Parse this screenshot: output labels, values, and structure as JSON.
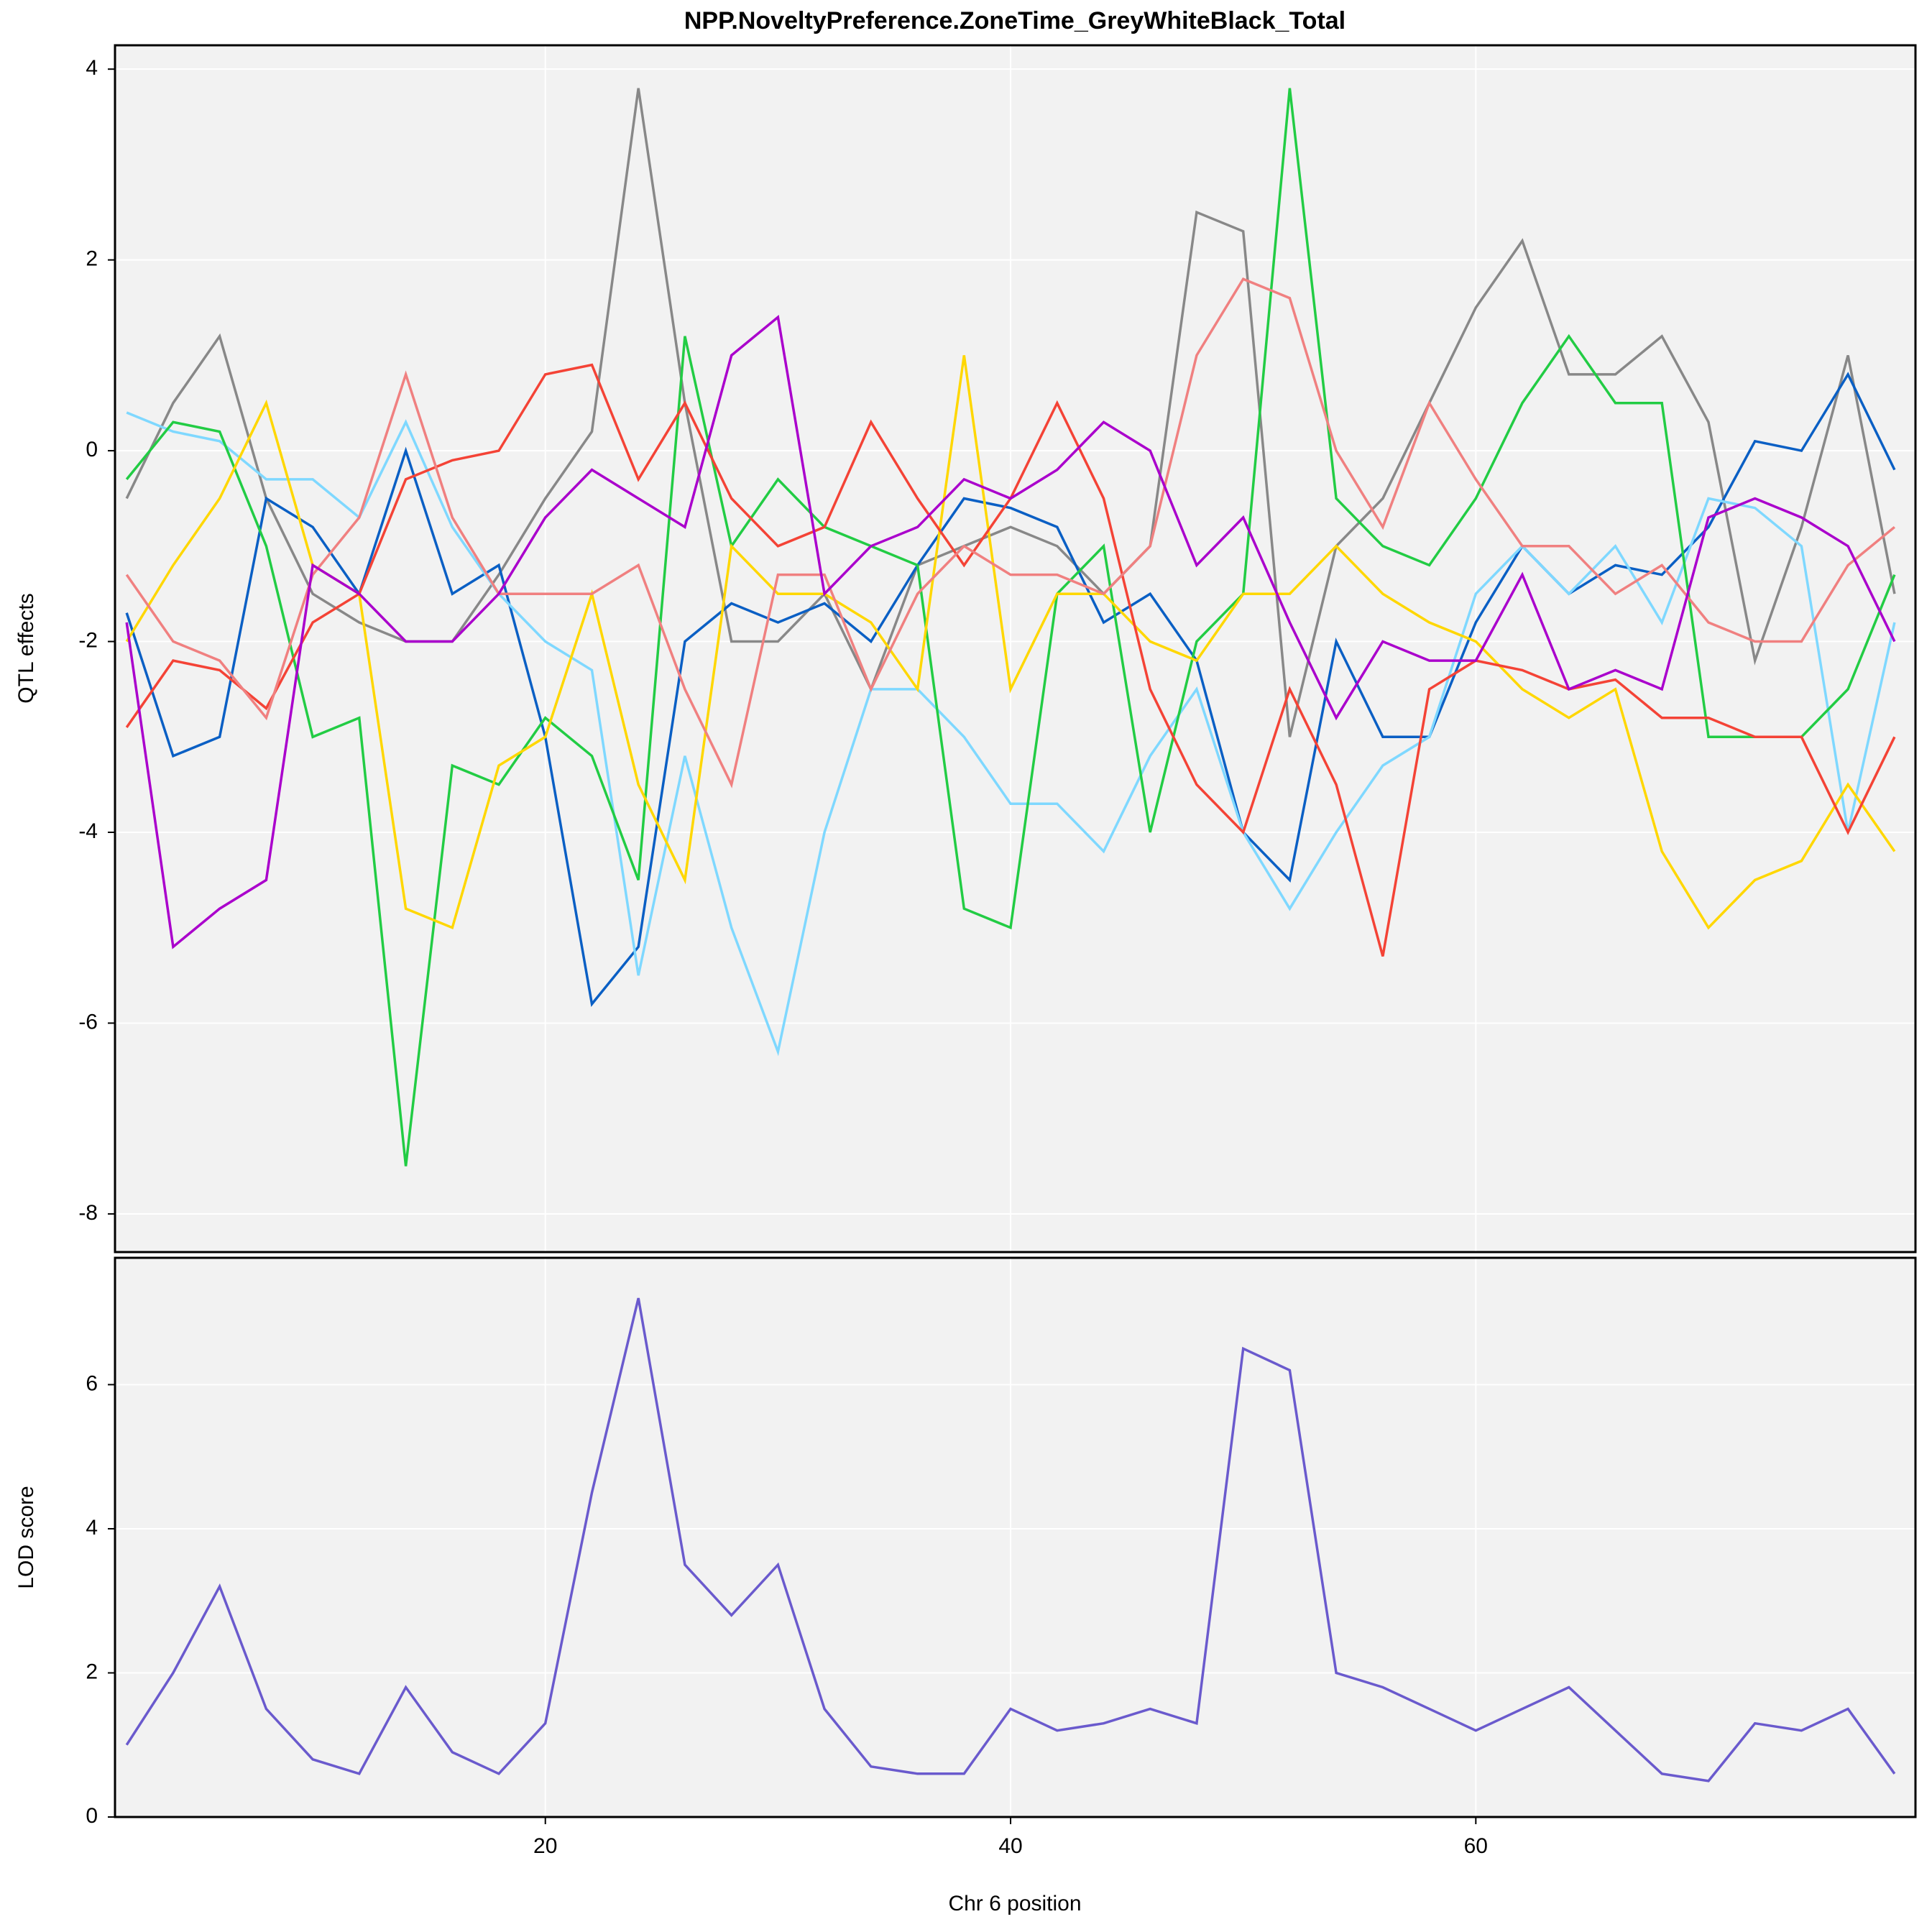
{
  "chart_data": [
    {
      "type": "line",
      "title": "NPP.NoveltyPreference.ZoneTime_GreyWhiteBlack_Total",
      "ylabel": "QTL effects",
      "x": [
        2,
        4,
        6,
        8,
        10,
        12,
        14,
        16,
        18,
        20,
        22,
        24,
        26,
        28,
        30,
        32,
        34,
        36,
        38,
        40,
        42,
        44,
        46,
        48,
        50,
        52,
        54,
        56,
        58,
        60,
        62,
        64,
        66,
        68,
        70,
        72,
        74,
        76,
        78
      ],
      "xlim": [
        1.5,
        78.9
      ],
      "ylim": [
        -8.4,
        4.25
      ],
      "yticks": [
        4,
        2,
        0,
        -2,
        -4,
        -6,
        -8
      ],
      "grid": true,
      "series": [
        {
          "color": "#888888",
          "values": [
            -0.5,
            0.5,
            1.2,
            -0.5,
            -1.5,
            -1.8,
            -2,
            -2,
            -1.3,
            -0.5,
            0.2,
            3.8,
            0.5,
            -2,
            -2,
            -1.5,
            -2.5,
            -1.2,
            -1,
            -0.8,
            -1,
            -1.5,
            -1,
            2.5,
            2.3,
            -3,
            -1,
            -0.5,
            0.5,
            1.5,
            2.2,
            0.8,
            0.8,
            1.2,
            0.3,
            -2.2,
            -0.8,
            1,
            -1.5
          ]
        },
        {
          "color": "#0a5fc4",
          "values": [
            -1.7,
            -3.2,
            -3,
            -0.5,
            -0.8,
            -1.5,
            0,
            -1.5,
            -1.2,
            -3,
            -5.8,
            -5.2,
            -2,
            -1.6,
            -1.8,
            -1.6,
            -2,
            -1.2,
            -0.5,
            -0.6,
            -0.8,
            -1.8,
            -1.5,
            -2.2,
            -4,
            -4.5,
            -2,
            -3,
            -3,
            -1.8,
            -1,
            -1.5,
            -1.2,
            -1.3,
            -0.8,
            0.1,
            0,
            0.8,
            -0.2
          ]
        },
        {
          "color": "#7fd8ff",
          "values": [
            0.4,
            0.2,
            0.1,
            -0.3,
            -0.3,
            -0.7,
            0.3,
            -0.8,
            -1.5,
            -2,
            -2.3,
            -5.5,
            -3.2,
            -5,
            -6.3,
            -4,
            -2.5,
            -2.5,
            -3,
            -3.7,
            -3.7,
            -4.2,
            -3.2,
            -2.5,
            -4,
            -4.8,
            -4,
            -3.3,
            -3,
            -1.5,
            -1,
            -1.5,
            -1,
            -1.8,
            -0.5,
            -0.6,
            -1,
            -4,
            -1.8
          ]
        },
        {
          "color": "#22cc44",
          "values": [
            -0.3,
            0.3,
            0.2,
            -1,
            -3,
            -2.8,
            -7.5,
            -3.3,
            -3.5,
            -2.8,
            -3.2,
            -4.5,
            1.2,
            -1,
            -0.3,
            -0.8,
            -1,
            -1.2,
            -4.8,
            -5,
            -1.5,
            -1,
            -4,
            -2,
            -1.5,
            3.8,
            -0.5,
            -1,
            -1.2,
            -0.5,
            0.5,
            1.2,
            0.5,
            0.5,
            -3,
            -3,
            -3,
            -2.5,
            -1.3
          ]
        },
        {
          "color": "#ffd700",
          "values": [
            -2,
            -1.2,
            -0.5,
            0.5,
            -1.2,
            -1.5,
            -4.8,
            -5,
            -3.3,
            -3,
            -1.5,
            -3.5,
            -4.5,
            -1,
            -1.5,
            -1.5,
            -1.8,
            -2.5,
            1,
            -2.5,
            -1.5,
            -1.5,
            -2,
            -2.2,
            -1.5,
            -1.5,
            -1,
            -1.5,
            -1.8,
            -2,
            -2.5,
            -2.8,
            -2.5,
            -4.2,
            -5,
            -4.5,
            -4.3,
            -3.5,
            -4.2
          ]
        },
        {
          "color": "#f44336",
          "values": [
            -2.9,
            -2.2,
            -2.3,
            -2.7,
            -1.8,
            -1.5,
            -0.3,
            -0.1,
            0,
            0.8,
            0.9,
            -0.3,
            0.5,
            -0.5,
            -1,
            -0.8,
            0.3,
            -0.5,
            -1.2,
            -0.5,
            0.5,
            -0.5,
            -2.5,
            -3.5,
            -4,
            -2.5,
            -3.5,
            -5.3,
            -2.5,
            -2.2,
            -2.3,
            -2.5,
            -2.4,
            -2.8,
            -2.8,
            -3,
            -3,
            -4,
            -3
          ]
        },
        {
          "color": "#f08080",
          "values": [
            -1.3,
            -2,
            -2.2,
            -2.8,
            -1.3,
            -0.7,
            0.8,
            -0.7,
            -1.5,
            -1.5,
            -1.5,
            -1.2,
            -2.5,
            -3.5,
            -1.3,
            -1.3,
            -2.5,
            -1.5,
            -1,
            -1.3,
            -1.3,
            -1.5,
            -1,
            1,
            1.8,
            1.6,
            0,
            -0.8,
            0.5,
            -0.3,
            -1,
            -1,
            -1.5,
            -1.2,
            -1.8,
            -2,
            -2,
            -1.2,
            -0.8
          ]
        },
        {
          "color": "#aa00cc",
          "values": [
            -1.8,
            -5.2,
            -4.8,
            -4.5,
            -1.2,
            -1.5,
            -2,
            -2,
            -1.5,
            -0.7,
            -0.2,
            -0.5,
            -0.8,
            1,
            1.4,
            -1.5,
            -1,
            -0.8,
            -0.3,
            -0.5,
            -0.2,
            0.3,
            0,
            -1.2,
            -0.7,
            -1.8,
            -2.8,
            -2,
            -2.2,
            -2.2,
            -1.3,
            -2.5,
            -2.3,
            -2.5,
            -0.7,
            -0.5,
            -0.7,
            -1,
            -2
          ]
        }
      ]
    },
    {
      "type": "line",
      "ylabel": "LOD score",
      "xlabel": "Chr 6 position",
      "x": [
        2,
        4,
        6,
        8,
        10,
        12,
        14,
        16,
        18,
        20,
        22,
        24,
        26,
        28,
        30,
        32,
        34,
        36,
        38,
        40,
        42,
        44,
        46,
        48,
        50,
        52,
        54,
        56,
        58,
        60,
        62,
        64,
        66,
        68,
        70,
        72,
        74,
        76,
        78
      ],
      "xlim": [
        1.5,
        78.9
      ],
      "xticks": [
        20,
        40,
        60
      ],
      "ylim": [
        0,
        7.76
      ],
      "yticks": [
        0,
        2,
        4,
        6
      ],
      "grid": true,
      "series": [
        {
          "color": "#6a5acd",
          "values": [
            1,
            2,
            3.2,
            1.5,
            0.8,
            0.6,
            1.8,
            0.9,
            0.6,
            1.3,
            4.5,
            7.2,
            3.5,
            2.8,
            3.5,
            1.5,
            0.7,
            0.6,
            0.6,
            1.5,
            1.2,
            1.3,
            1.5,
            1.3,
            6.5,
            6.2,
            2,
            1.8,
            1.5,
            1.2,
            1.5,
            1.8,
            1.2,
            0.6,
            0.5,
            1.3,
            1.2,
            1.5,
            0.6
          ]
        }
      ]
    }
  ]
}
